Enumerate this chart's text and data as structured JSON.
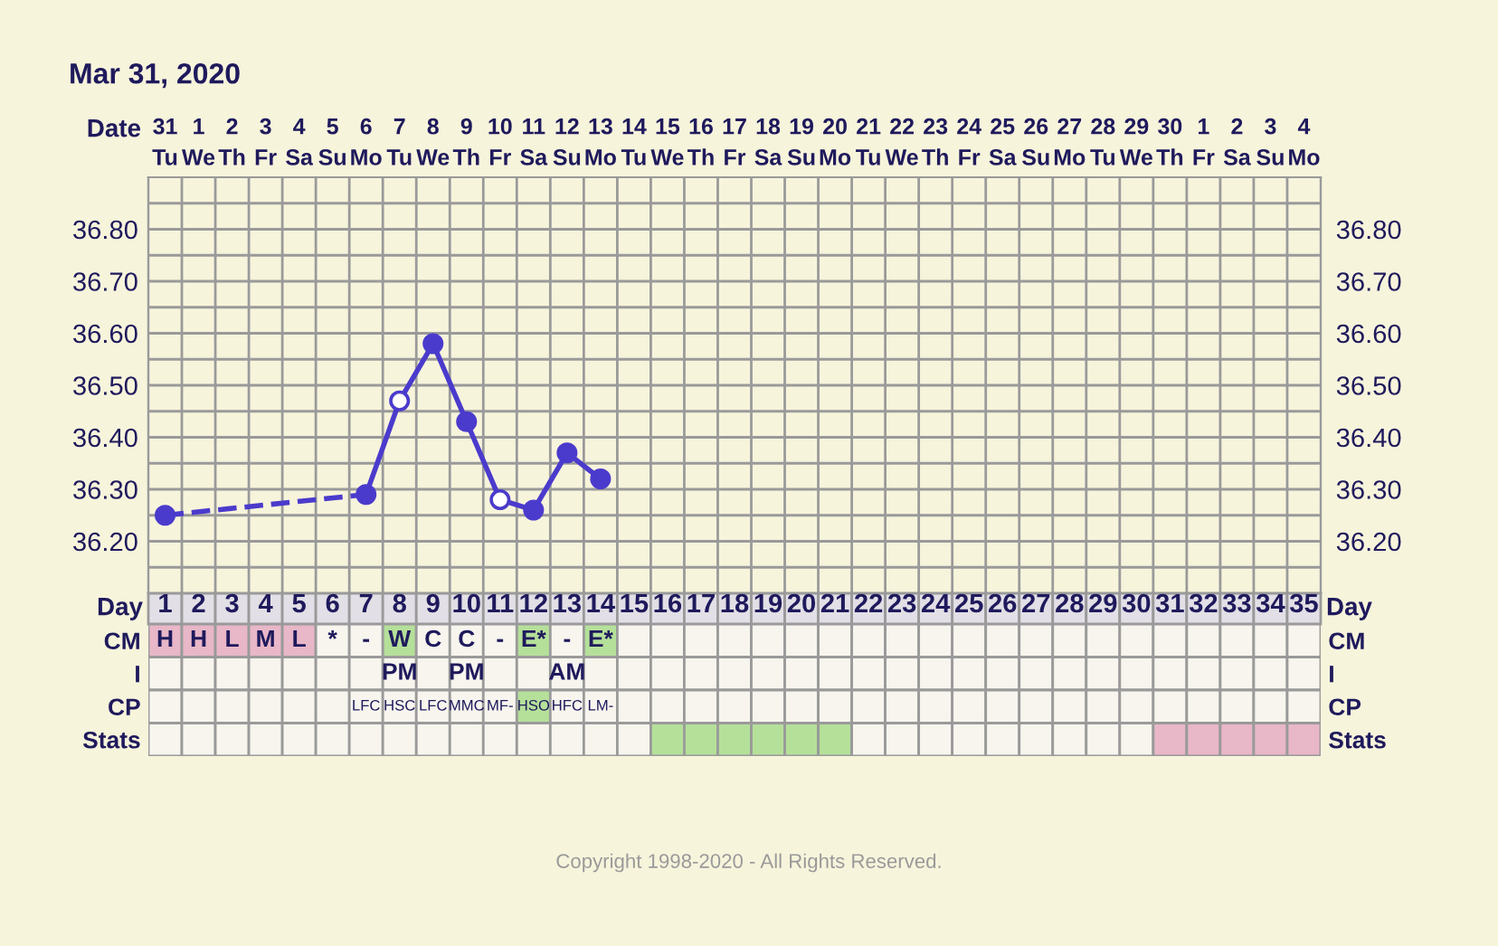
{
  "chart_data": [
    {
      "type": "line",
      "title": "Mar 31, 2020",
      "xlabel": "Date",
      "categories": [
        "31\nTu",
        "1\nWe",
        "2\nTh",
        "3\nFr",
        "4\nSa",
        "5\nSu",
        "6\nMo",
        "7\nTu",
        "8\nWe",
        "9\nTh",
        "10\nFr",
        "11\nSa",
        "12\nSu",
        "13\nMo",
        "14\nTu",
        "15\nWe",
        "16\nTh",
        "17\nFr",
        "18\nSa",
        "19\nSu",
        "20\nMo",
        "21\nTu",
        "22\nWe",
        "23\nTh",
        "24\nFr",
        "25\nSa",
        "26\nSu",
        "27\nMo",
        "28\nTu",
        "29\nWe",
        "30\nTh",
        "1\nFr",
        "2\nSa",
        "3\nSu",
        "4\nMo"
      ],
      "series": [
        {
          "color": "#4b3bcc",
          "values": [
            36.25,
            null,
            null,
            null,
            null,
            null,
            36.29,
            36.47,
            36.58,
            36.43,
            36.28,
            36.26,
            36.37,
            36.32,
            null,
            null,
            null,
            null,
            null,
            null,
            null,
            null,
            null,
            null,
            null,
            null,
            null,
            null,
            null,
            null,
            null,
            null,
            null,
            null,
            null
          ],
          "colors": [
            "#4b3bcc",
            null,
            null,
            null,
            null,
            null,
            "#4b3bcc",
            "#ffffff",
            "#4b3bcc",
            "#4b3bcc",
            "#ffffff",
            "#4b3bcc",
            "#4b3bcc",
            "#4b3bcc",
            null,
            null,
            null,
            null,
            null,
            null,
            null,
            null,
            null,
            null,
            null,
            null,
            null,
            null,
            null,
            null,
            null,
            null,
            null,
            null,
            null
          ]
        }
      ],
      "ylim": [
        36.1,
        36.9
      ],
      "yticks": [
        {
          "value": 36.15,
          "label": null
        },
        {
          "value": 36.2,
          "label": "36.20"
        },
        {
          "value": 36.25,
          "label": null
        },
        {
          "value": 36.3,
          "label": "36.30"
        },
        {
          "value": 36.35,
          "label": null
        },
        {
          "value": 36.4,
          "label": "36.40"
        },
        {
          "value": 36.45,
          "label": null
        },
        {
          "value": 36.5,
          "label": "36.50"
        },
        {
          "value": 36.55,
          "label": null
        },
        {
          "value": 36.6,
          "label": "36.60"
        },
        {
          "value": 36.65,
          "label": null
        },
        {
          "value": 36.7,
          "label": "36.70"
        },
        {
          "value": 36.75,
          "label": null
        },
        {
          "value": 36.8,
          "label": "36.80"
        },
        {
          "value": 36.85,
          "label": null
        }
      ],
      "y2lim": [
        36.1,
        36.9
      ],
      "y2ticks": [
        {
          "value": 36.15,
          "label": null
        },
        {
          "value": 36.2,
          "label": "36.20"
        },
        {
          "value": 36.25,
          "label": null
        },
        {
          "value": 36.3,
          "label": "36.30"
        },
        {
          "value": 36.35,
          "label": null
        },
        {
          "value": 36.4,
          "label": "36.40"
        },
        {
          "value": 36.45,
          "label": null
        },
        {
          "value": 36.5,
          "label": "36.50"
        },
        {
          "value": 36.55,
          "label": null
        },
        {
          "value": 36.6,
          "label": "36.60"
        },
        {
          "value": 36.65,
          "label": null
        },
        {
          "value": 36.7,
          "label": "36.70"
        },
        {
          "value": 36.75,
          "label": null
        },
        {
          "value": 36.8,
          "label": "36.80"
        },
        {
          "value": 36.85,
          "label": null
        }
      ],
      "grid": true,
      "marker": "circle",
      "line_style": "solid"
    },
    {
      "type": "heatmap",
      "xlabel": "Day",
      "categories": [
        "1",
        "2",
        "3",
        "4",
        "5",
        "6",
        "7",
        "8",
        "9",
        "10",
        "11",
        "12",
        "13",
        "14",
        "15",
        "16",
        "17",
        "18",
        "19",
        "20",
        "21",
        "22",
        "23",
        "24",
        "25",
        "26",
        "27",
        "28",
        "29",
        "30",
        "31",
        "32",
        "33",
        "34",
        "35"
      ],
      "y_categories": [
        "CM",
        "I",
        "CP",
        "Stats"
      ],
      "y2_categories": [
        "CM",
        "I",
        "CP",
        "Stats"
      ],
      "cells": [
        [
          null,
          null,
          null,
          null,
          null,
          null,
          null,
          null,
          null,
          null,
          null,
          null,
          null,
          null,
          null,
          null,
          null,
          null,
          null,
          null,
          null,
          null,
          null,
          null,
          null,
          null,
          null,
          null,
          null,
          null,
          null,
          null,
          null,
          null,
          null
        ],
        [
          null,
          null,
          null,
          null,
          null,
          null,
          null,
          null,
          null,
          null,
          null,
          null,
          null,
          null,
          null,
          null,
          null,
          null,
          null,
          null,
          null,
          null,
          null,
          null,
          null,
          null,
          null,
          null,
          null,
          null,
          null,
          null,
          null,
          null,
          null
        ],
        [
          null,
          null,
          null,
          null,
          null,
          null,
          null,
          null,
          null,
          null,
          null,
          null,
          null,
          null,
          null,
          null,
          null,
          null,
          null,
          null,
          null,
          null,
          null,
          null,
          null,
          null,
          null,
          null,
          null,
          null,
          null,
          null,
          null,
          null,
          null
        ],
        [
          null,
          null,
          null,
          null,
          null,
          null,
          null,
          null,
          null,
          null,
          null,
          null,
          null,
          null,
          null,
          null,
          null,
          null,
          null,
          null,
          null,
          null,
          null,
          null,
          null,
          null,
          null,
          null,
          null,
          null,
          null,
          null,
          null,
          null,
          null
        ]
      ],
      "cell_labels": [
        [
          "H",
          "H",
          "L",
          "M",
          "L",
          "*",
          "-",
          "W",
          "C",
          "C",
          "-",
          "E*",
          "-",
          "E*",
          null,
          null,
          null,
          null,
          null,
          null,
          null,
          null,
          null,
          null,
          null,
          null,
          null,
          null,
          null,
          null,
          null,
          null,
          null,
          null,
          null
        ],
        [
          null,
          null,
          null,
          null,
          null,
          null,
          null,
          "PM",
          null,
          "PM",
          null,
          null,
          "AM",
          null,
          null,
          null,
          null,
          null,
          null,
          null,
          null,
          null,
          null,
          null,
          null,
          null,
          null,
          null,
          null,
          null,
          null,
          null,
          null,
          null,
          null
        ],
        [
          null,
          null,
          null,
          null,
          null,
          null,
          "LFC",
          "HSC",
          "LFC",
          "MMC",
          "MF-",
          "HSO",
          "HFC",
          "LM-",
          null,
          null,
          null,
          null,
          null,
          null,
          null,
          null,
          null,
          null,
          null,
          null,
          null,
          null,
          null,
          null,
          null,
          null,
          null,
          null,
          null
        ],
        [
          null,
          null,
          null,
          null,
          null,
          null,
          null,
          null,
          null,
          null,
          null,
          null,
          null,
          null,
          null,
          null,
          null,
          null,
          null,
          null,
          null,
          null,
          null,
          null,
          null,
          null,
          null,
          null,
          null,
          null,
          null,
          null,
          null,
          null,
          null
        ]
      ],
      "colors": [
        [
          "#e8b7c8",
          "#e8b7c8",
          "#e8b7c8",
          "#e8b7c8",
          "#e8b7c8",
          "#f7f5ee",
          "#f7f5ee",
          "#b5e09a",
          "#f7f5ee",
          "#f7f5ee",
          "#f7f5ee",
          "#b5e09a",
          "#f7f5ee",
          "#b5e09a",
          "#f7f5ee",
          "#f7f5ee",
          "#f7f5ee",
          "#f7f5ee",
          "#f7f5ee",
          "#f7f5ee",
          "#f7f5ee",
          "#f7f5ee",
          "#f7f5ee",
          "#f7f5ee",
          "#f7f5ee",
          "#f7f5ee",
          "#f7f5ee",
          "#f7f5ee",
          "#f7f5ee",
          "#f7f5ee",
          "#f7f5ee",
          "#f7f5ee",
          "#f7f5ee",
          "#f7f5ee",
          "#f7f5ee"
        ],
        [
          "#f7f5ee",
          "#f7f5ee",
          "#f7f5ee",
          "#f7f5ee",
          "#f7f5ee",
          "#f7f5ee",
          "#f7f5ee",
          "#f7f5ee",
          "#f7f5ee",
          "#f7f5ee",
          "#f7f5ee",
          "#f7f5ee",
          "#f7f5ee",
          "#f7f5ee",
          "#f7f5ee",
          "#f7f5ee",
          "#f7f5ee",
          "#f7f5ee",
          "#f7f5ee",
          "#f7f5ee",
          "#f7f5ee",
          "#f7f5ee",
          "#f7f5ee",
          "#f7f5ee",
          "#f7f5ee",
          "#f7f5ee",
          "#f7f5ee",
          "#f7f5ee",
          "#f7f5ee",
          "#f7f5ee",
          "#f7f5ee",
          "#f7f5ee",
          "#f7f5ee",
          "#f7f5ee",
          "#f7f5ee"
        ],
        [
          "#f7f5ee",
          "#f7f5ee",
          "#f7f5ee",
          "#f7f5ee",
          "#f7f5ee",
          "#f7f5ee",
          "#f7f5ee",
          "#f7f5ee",
          "#f7f5ee",
          "#f7f5ee",
          "#f7f5ee",
          "#b5e09a",
          "#f7f5ee",
          "#f7f5ee",
          "#f7f5ee",
          "#f7f5ee",
          "#f7f5ee",
          "#f7f5ee",
          "#f7f5ee",
          "#f7f5ee",
          "#f7f5ee",
          "#f7f5ee",
          "#f7f5ee",
          "#f7f5ee",
          "#f7f5ee",
          "#f7f5ee",
          "#f7f5ee",
          "#f7f5ee",
          "#f7f5ee",
          "#f7f5ee",
          "#f7f5ee",
          "#f7f5ee",
          "#f7f5ee",
          "#f7f5ee",
          "#f7f5ee"
        ],
        [
          "#f7f5ee",
          "#f7f5ee",
          "#f7f5ee",
          "#f7f5ee",
          "#f7f5ee",
          "#f7f5ee",
          "#f7f5ee",
          "#f7f5ee",
          "#f7f5ee",
          "#f7f5ee",
          "#f7f5ee",
          "#f7f5ee",
          "#f7f5ee",
          "#f7f5ee",
          "#f7f5ee",
          "#b5e09a",
          "#b5e09a",
          "#b5e09a",
          "#b5e09a",
          "#b5e09a",
          "#b5e09a",
          "#f7f5ee",
          "#f7f5ee",
          "#f7f5ee",
          "#f7f5ee",
          "#f7f5ee",
          "#f7f5ee",
          "#f7f5ee",
          "#f7f5ee",
          "#f7f5ee",
          "#e8b7c8",
          "#e8b7c8",
          "#e8b7c8",
          "#e8b7c8",
          "#e8b7c8"
        ]
      ],
      "annotations": [
        "Copyright 1998-2020 - All Rights Reserved."
      ]
    }
  ]
}
